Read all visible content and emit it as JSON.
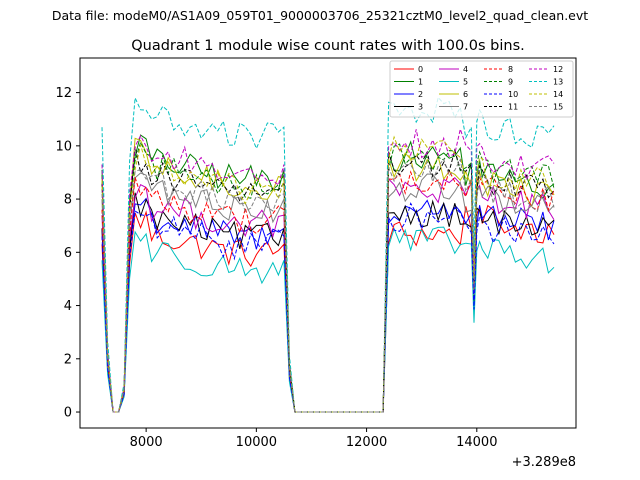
{
  "chart_data": {
    "type": "line",
    "suptitle": "Data file: modeM0/AS1A09_059T01_9000003706_25321cztM0_level2_quad_clean.evt",
    "title": "Quadrant 1 module wise count rates with 100.0s bins.",
    "xlabel": "",
    "ylabel": "",
    "x_offset_label": "+3.289e8",
    "xlim": [
      6800,
      15800
    ],
    "ylim": [
      -0.6,
      13.3
    ],
    "xticks": [
      8000,
      10000,
      12000,
      14000
    ],
    "yticks": [
      0,
      2,
      4,
      6,
      8,
      10,
      12
    ],
    "grid": false,
    "legend": {
      "placement": "top-right",
      "columns": 4
    },
    "segments": [
      {
        "from": 7200,
        "to": 10600,
        "kind": "active"
      },
      {
        "from": 10650,
        "to": 12300,
        "kind": "zero"
      },
      {
        "from": 12350,
        "to": 13750,
        "kind": "active"
      },
      {
        "from": 13950,
        "to": 15450,
        "kind": "active"
      }
    ],
    "transitions": [
      {
        "x": 7200,
        "v": 1.0
      },
      {
        "x": 7300,
        "v": 0.25
      },
      {
        "x": 7400,
        "v": 0.0
      },
      {
        "x": 7500,
        "v": 0.0
      },
      {
        "x": 7600,
        "v": 0.1
      },
      {
        "x": 7700,
        "v": 0.88
      },
      {
        "x": 10500,
        "v": 1.0
      },
      {
        "x": 10600,
        "v": 0.2
      },
      {
        "x": 12350,
        "v": 0.07
      },
      {
        "x": 12450,
        "v": 1.0
      },
      {
        "x": 13750,
        "v": 1.0
      },
      {
        "x": 13850,
        "v": 0.0
      },
      {
        "x": 13950,
        "v": 0.55
      },
      {
        "x": 14050,
        "v": 1.05
      }
    ],
    "series": [
      {
        "name": "0",
        "color": "#ff0000",
        "dash": "solid",
        "levels": [
          6.3,
          6.7,
          7.3
        ]
      },
      {
        "name": "1",
        "color": "#008000",
        "dash": "solid",
        "levels": [
          9.1,
          9.6,
          9.0
        ]
      },
      {
        "name": "2",
        "color": "#0000ff",
        "dash": "solid",
        "levels": [
          6.9,
          7.6,
          7.4
        ]
      },
      {
        "name": "3",
        "color": "#000000",
        "dash": "solid",
        "levels": [
          6.9,
          7.5,
          7.2
        ]
      },
      {
        "name": "4",
        "color": "#bf00bf",
        "dash": "solid",
        "levels": [
          7.4,
          8.3,
          8.1
        ]
      },
      {
        "name": "5",
        "color": "#00bfbf",
        "dash": "solid",
        "levels": [
          5.7,
          6.4,
          6.1
        ]
      },
      {
        "name": "6",
        "color": "#bfbf00",
        "dash": "solid",
        "levels": [
          8.8,
          9.2,
          8.6
        ]
      },
      {
        "name": "7",
        "color": "#808080",
        "dash": "solid",
        "levels": [
          8.0,
          8.4,
          8.0
        ]
      },
      {
        "name": "8",
        "color": "#ff0000",
        "dash": "dashed",
        "levels": [
          7.6,
          8.6,
          8.4
        ]
      },
      {
        "name": "9",
        "color": "#008000",
        "dash": "dashed",
        "levels": [
          8.9,
          9.6,
          9.3
        ]
      },
      {
        "name": "10",
        "color": "#0000ff",
        "dash": "dashed",
        "levels": [
          6.6,
          7.3,
          7.0
        ]
      },
      {
        "name": "11",
        "color": "#000000",
        "dash": "dashed",
        "levels": [
          8.6,
          9.3,
          8.8
        ]
      },
      {
        "name": "12",
        "color": "#bf00bf",
        "dash": "dashed",
        "levels": [
          9.3,
          10.1,
          9.6
        ]
      },
      {
        "name": "13",
        "color": "#00bfbf",
        "dash": "dashed",
        "levels": [
          10.7,
          11.3,
          10.8
        ]
      },
      {
        "name": "14",
        "color": "#bfbf00",
        "dash": "dashed",
        "levels": [
          8.7,
          9.8,
          9.1
        ]
      },
      {
        "name": "15",
        "color": "#808080",
        "dash": "dashed",
        "levels": [
          8.2,
          9.0,
          8.4
        ]
      }
    ]
  }
}
